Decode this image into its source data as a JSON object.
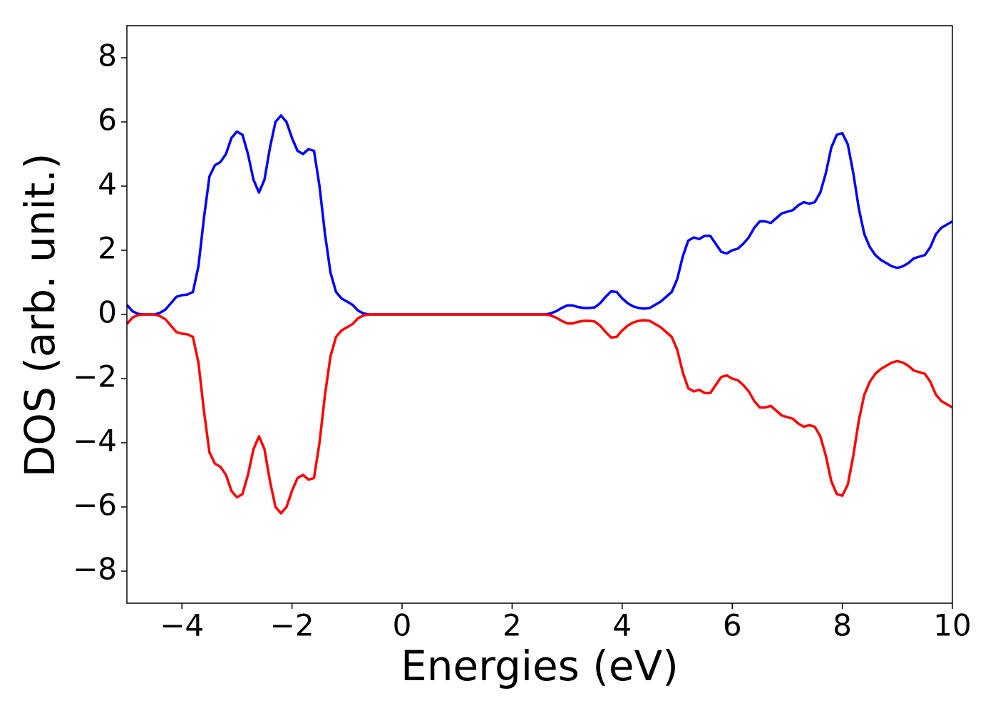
{
  "chart_data": {
    "type": "line",
    "xlabel": "Energies (eV)",
    "ylabel": "DOS (arb. unit.)",
    "x": [
      -5,
      -4.9,
      -4.8,
      -4.7,
      -4.6,
      -4.5,
      -4.4,
      -4.3,
      -4.2,
      -4.1,
      -4.0,
      -3.9,
      -3.8,
      -3.7,
      -3.6,
      -3.5,
      -3.4,
      -3.3,
      -3.2,
      -3.1,
      -3.0,
      -2.9,
      -2.8,
      -2.7,
      -2.6,
      -2.5,
      -2.4,
      -2.3,
      -2.2,
      -2.1,
      -2.0,
      -1.9,
      -1.8,
      -1.7,
      -1.6,
      -1.5,
      -1.4,
      -1.3,
      -1.2,
      -1.1,
      -1.0,
      -0.9,
      -0.8,
      -0.7,
      -0.6,
      0,
      1,
      2,
      2.6,
      2.7,
      2.8,
      2.9,
      3.0,
      3.1,
      3.2,
      3.3,
      3.4,
      3.5,
      3.6,
      3.7,
      3.8,
      3.9,
      4.0,
      4.1,
      4.2,
      4.3,
      4.4,
      4.5,
      4.6,
      4.7,
      4.8,
      4.9,
      5.0,
      5.1,
      5.2,
      5.3,
      5.4,
      5.5,
      5.6,
      5.7,
      5.8,
      5.9,
      6.0,
      6.1,
      6.2,
      6.3,
      6.4,
      6.5,
      6.6,
      6.7,
      6.8,
      6.9,
      7.0,
      7.1,
      7.2,
      7.3,
      7.4,
      7.5,
      7.6,
      7.7,
      7.8,
      7.9,
      8.0,
      8.1,
      8.2,
      8.3,
      8.4,
      8.5,
      8.6,
      8.7,
      8.8,
      8.9,
      9.0,
      9.1,
      9.2,
      9.3,
      9.4,
      9.5,
      9.6,
      9.7,
      9.8,
      9.9,
      10.0
    ],
    "series": [
      {
        "color": "#0000ff",
        "values": [
          0.3,
          0.1,
          0.02,
          0,
          0,
          0,
          0.05,
          0.15,
          0.35,
          0.55,
          0.6,
          0.62,
          0.7,
          1.5,
          3.0,
          4.3,
          4.65,
          4.75,
          5.0,
          5.5,
          5.7,
          5.6,
          5.0,
          4.2,
          3.8,
          4.2,
          5.2,
          6.0,
          6.2,
          6.0,
          5.5,
          5.1,
          5.0,
          5.15,
          5.1,
          4.0,
          2.5,
          1.3,
          0.7,
          0.5,
          0.4,
          0.3,
          0.12,
          0.03,
          0,
          0,
          0,
          0,
          0,
          0.03,
          0.1,
          0.2,
          0.28,
          0.28,
          0.23,
          0.2,
          0.2,
          0.22,
          0.35,
          0.55,
          0.72,
          0.7,
          0.5,
          0.35,
          0.25,
          0.2,
          0.18,
          0.2,
          0.3,
          0.4,
          0.55,
          0.7,
          1.1,
          1.8,
          2.3,
          2.4,
          2.35,
          2.45,
          2.45,
          2.2,
          1.95,
          1.9,
          2.0,
          2.05,
          2.2,
          2.4,
          2.7,
          2.9,
          2.9,
          2.85,
          3.0,
          3.15,
          3.2,
          3.25,
          3.4,
          3.5,
          3.45,
          3.5,
          3.8,
          4.4,
          5.2,
          5.6,
          5.65,
          5.3,
          4.4,
          3.3,
          2.5,
          2.1,
          1.85,
          1.7,
          1.6,
          1.5,
          1.45,
          1.5,
          1.6,
          1.75,
          1.8,
          1.85,
          2.1,
          2.5,
          2.7,
          2.8,
          2.9
        ]
      },
      {
        "color": "#ff0000",
        "values": [
          -0.3,
          -0.1,
          -0.02,
          0,
          0,
          0,
          -0.05,
          -0.15,
          -0.35,
          -0.55,
          -0.6,
          -0.62,
          -0.7,
          -1.5,
          -3.0,
          -4.3,
          -4.65,
          -4.75,
          -5.0,
          -5.5,
          -5.7,
          -5.6,
          -5.0,
          -4.2,
          -3.8,
          -4.2,
          -5.2,
          -6.0,
          -6.2,
          -6.0,
          -5.5,
          -5.1,
          -5.0,
          -5.15,
          -5.1,
          -4.0,
          -2.5,
          -1.3,
          -0.7,
          -0.5,
          -0.4,
          -0.3,
          -0.12,
          -0.03,
          0,
          0,
          0,
          0,
          0,
          -0.03,
          -0.1,
          -0.2,
          -0.28,
          -0.28,
          -0.23,
          -0.2,
          -0.2,
          -0.22,
          -0.35,
          -0.55,
          -0.72,
          -0.7,
          -0.5,
          -0.35,
          -0.25,
          -0.2,
          -0.18,
          -0.2,
          -0.3,
          -0.4,
          -0.55,
          -0.7,
          -1.1,
          -1.8,
          -2.3,
          -2.4,
          -2.35,
          -2.45,
          -2.45,
          -2.2,
          -1.95,
          -1.9,
          -2.0,
          -2.05,
          -2.2,
          -2.4,
          -2.7,
          -2.9,
          -2.9,
          -2.85,
          -3.0,
          -3.15,
          -3.2,
          -3.25,
          -3.4,
          -3.5,
          -3.45,
          -3.5,
          -3.8,
          -4.4,
          -5.2,
          -5.6,
          -5.65,
          -5.3,
          -4.4,
          -3.3,
          -2.5,
          -2.1,
          -1.85,
          -1.7,
          -1.6,
          -1.5,
          -1.45,
          -1.5,
          -1.6,
          -1.75,
          -1.8,
          -1.85,
          -2.1,
          -2.5,
          -2.7,
          -2.8,
          -2.9
        ]
      }
    ],
    "xlim": [
      -5,
      10
    ],
    "xticks": [
      {
        "value": -4,
        "label": "−4"
      },
      {
        "value": -2,
        "label": "−2"
      },
      0,
      2,
      4,
      6,
      8,
      10
    ],
    "ylim": [
      -9,
      9
    ],
    "yticks": [
      {
        "value": -8,
        "label": "−8"
      },
      {
        "value": -6,
        "label": "−6"
      },
      {
        "value": -4,
        "label": "−4"
      },
      {
        "value": -2,
        "label": "−2"
      },
      0,
      2,
      4,
      6,
      8
    ],
    "grid": false
  }
}
